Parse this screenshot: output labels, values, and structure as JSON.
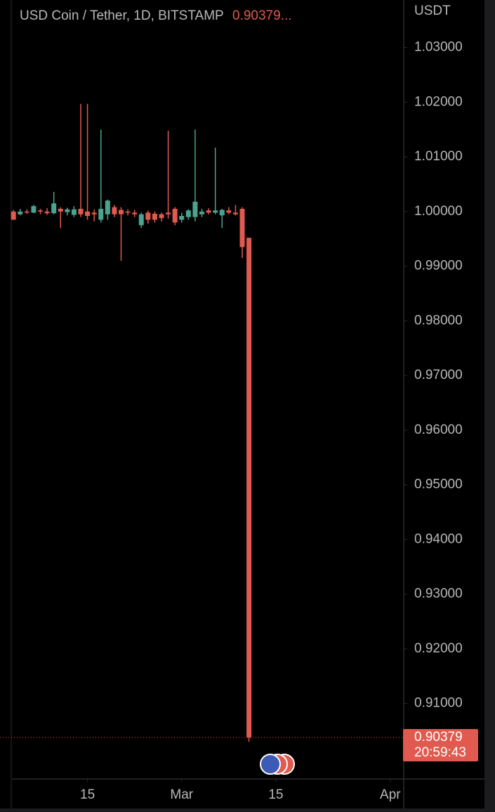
{
  "chart_data": {
    "type": "candlestick",
    "title": "USD Coin / Tether, 1D, BITSTAMP",
    "title_price": "0.90379...",
    "y_unit": "USDT",
    "x": [
      "02-04",
      "02-05",
      "02-06",
      "02-07",
      "02-08",
      "02-09",
      "02-10",
      "02-11",
      "02-12",
      "02-13",
      "02-14",
      "02-15",
      "02-16",
      "02-17",
      "02-18",
      "02-19",
      "02-20",
      "02-21",
      "02-22",
      "02-23",
      "02-24",
      "02-25",
      "02-26",
      "02-27",
      "02-28",
      "03-01",
      "03-02",
      "03-03",
      "03-04",
      "03-05",
      "03-06",
      "03-07",
      "03-08",
      "03-09",
      "03-10",
      "03-11"
    ],
    "open": [
      1.0,
      0.9995,
      1.0,
      0.9998,
      1.0002,
      1.0,
      0.9997,
      1.0005,
      0.9999,
      0.9994,
      1.0005,
      1.0,
      0.9998,
      0.9985,
      0.9995,
      1.0008,
      1.0003,
      1.0,
      0.9998,
      0.9975,
      0.9998,
      0.9996,
      0.9995,
      0.9998,
      1.0005,
      0.9985,
      0.999,
      0.999,
      0.9995,
      1.0002,
      0.9998,
      0.9993,
      1.0002,
      0.9998,
      1.0005,
      0.9952
    ],
    "high": [
      1.0003,
      1.0005,
      1.0004,
      1.0012,
      1.0005,
      1.0006,
      1.0036,
      1.0008,
      1.0007,
      1.001,
      1.0197,
      1.0197,
      1.0004,
      1.015,
      1.0022,
      1.0012,
      1.0008,
      1.0004,
      1.0003,
      0.9998,
      1.0002,
      1.0,
      0.9998,
      1.0148,
      1.0008,
      0.9998,
      1.0004,
      1.015,
      1.0005,
      1.0006,
      1.0117,
      1.0005,
      1.0008,
      1.0012,
      1.0008,
      0.9952
    ],
    "low": [
      0.9985,
      0.9993,
      0.9996,
      0.9997,
      0.9995,
      0.9994,
      0.9995,
      0.997,
      0.9993,
      0.999,
      0.999,
      0.9985,
      0.9982,
      0.998,
      0.9985,
      0.999,
      0.991,
      0.9993,
      0.999,
      0.997,
      0.9978,
      0.998,
      0.9982,
      0.9987,
      0.9975,
      0.998,
      0.9985,
      0.9982,
      0.999,
      0.9995,
      0.9995,
      0.997,
      0.9995,
      0.9993,
      0.9915,
      0.903
    ],
    "close": [
      0.9985,
      1.0,
      0.9998,
      1.001,
      1.0,
      0.9997,
      1.0015,
      1.0,
      1.0004,
      1.0004,
      0.9995,
      0.9992,
      0.9995,
      1.0005,
      1.002,
      0.9995,
      0.9995,
      0.9998,
      0.9995,
      0.9995,
      0.9985,
      0.9985,
      0.9988,
      0.9995,
      0.998,
      0.9992,
      1.0002,
      1.0018,
      1.0,
      0.9998,
      1.0002,
      1.0003,
      0.9998,
      0.9995,
      0.9935,
      0.90379
    ],
    "up_color": "#4aa391",
    "down_color": "#e05a4f",
    "xlim": [
      "02-02",
      "04-03"
    ],
    "xticks": [
      {
        "value": "02-15",
        "label": "15"
      },
      {
        "value": "03-01",
        "label": "Mar"
      },
      {
        "value": "03-15",
        "label": "15"
      },
      {
        "value": "04-01",
        "label": "Apr"
      }
    ],
    "ylim": [
      0.8962,
      1.0387
    ],
    "yticks": [
      {
        "value": 0.91,
        "label": "0.91000"
      },
      {
        "value": 0.92,
        "label": "0.92000"
      },
      {
        "value": 0.93,
        "label": "0.93000"
      },
      {
        "value": 0.94,
        "label": "0.94000"
      },
      {
        "value": 0.95,
        "label": "0.95000"
      },
      {
        "value": 0.96,
        "label": "0.96000"
      },
      {
        "value": 0.97,
        "label": "0.97000"
      },
      {
        "value": 0.98,
        "label": "0.98000"
      },
      {
        "value": 0.99,
        "label": "0.99000"
      },
      {
        "value": 1.0,
        "label": "1.00000"
      },
      {
        "value": 1.01,
        "label": "1.01000"
      },
      {
        "value": 1.02,
        "label": "1.02000"
      },
      {
        "value": 1.03,
        "label": "1.03000"
      }
    ],
    "price_label": {
      "value": 0.90379,
      "label": "0.90379"
    },
    "countdown": "20:59:43",
    "grid": false
  }
}
